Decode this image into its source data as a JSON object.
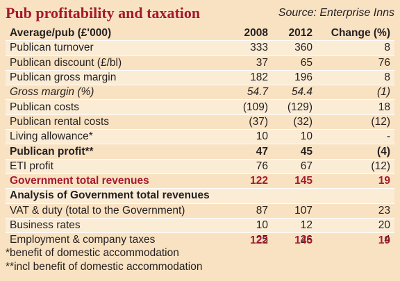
{
  "title": "Pub profitability and taxation",
  "source": "Source: Enterprise Inns",
  "columns": [
    "Average/pub (£'000)",
    "2008",
    "2012",
    "Change (%)"
  ],
  "rows": [
    {
      "label": "Publican turnover",
      "v2008": "333",
      "v2012": "360",
      "change": "8",
      "style": ""
    },
    {
      "label": "Publican discount (£/bl)",
      "v2008": "37",
      "v2012": "65",
      "change": "76",
      "style": ""
    },
    {
      "label": "Publican gross margin",
      "v2008": "182",
      "v2012": "196",
      "change": "8",
      "style": ""
    },
    {
      "label": "Gross margin (%)",
      "v2008": "54.7",
      "v2012": "54.4",
      "change": "(1)",
      "style": "italic"
    },
    {
      "label": "Publican costs",
      "v2008": "(109)",
      "v2012": "(129)",
      "change": "18",
      "style": ""
    },
    {
      "label": "Publican rental costs",
      "v2008": "(37)",
      "v2012": "(32)",
      "change": "(12)",
      "style": ""
    },
    {
      "label": "Living allowance*",
      "v2008": "10",
      "v2012": "10",
      "change": "-",
      "style": ""
    },
    {
      "label": "Publican profit**",
      "v2008": "47",
      "v2012": "45",
      "change": "(4)",
      "style": "bold"
    },
    {
      "label": "ETI profit",
      "v2008": "76",
      "v2012": "67",
      "change": "(12)",
      "style": ""
    },
    {
      "label": "Government total revenues",
      "v2008": "122",
      "v2012": "145",
      "change": "19",
      "style": "red"
    },
    {
      "label": "Analysis of Government total revenues",
      "v2008": "",
      "v2012": "",
      "change": "",
      "style": "bold"
    },
    {
      "label": "VAT & duty (total to the Government)",
      "v2008": "87",
      "v2012": "107",
      "change": "23",
      "style": ""
    },
    {
      "label": "Business rates",
      "v2008": "10",
      "v2012": "12",
      "change": "20",
      "style": ""
    },
    {
      "label": "Employment & company taxes",
      "v2008": "25",
      "v2012": "26",
      "change": "4",
      "style": ""
    }
  ],
  "totals": {
    "v2008": "122",
    "v2012": "145",
    "change": "19"
  },
  "footnotes": [
    "*benefit of domestic accommodation",
    "**incl benefit of domestic accommodation"
  ]
}
